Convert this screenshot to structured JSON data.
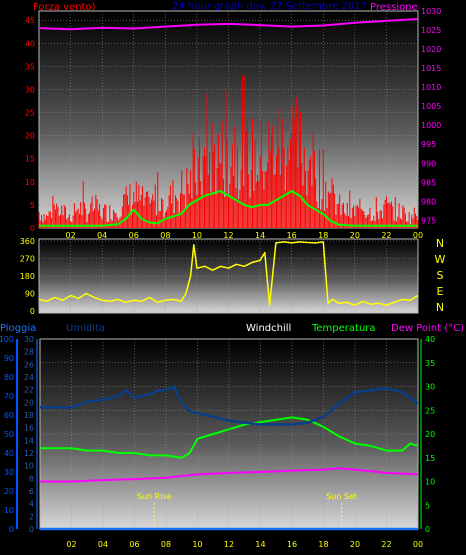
{
  "header": {
    "left_label": "Forza vento)",
    "center_label": "24 hour graph day.  27 Settembre 2017",
    "right_label": "Pressione"
  },
  "bottom_header": {
    "pioggia": "Pioggia",
    "umidita": "Umidita",
    "windchill": "Windchill",
    "temperatura": "Temperatura",
    "dewpoint": "Dew Point (°C)"
  },
  "compass": [
    "N",
    "W",
    "S",
    "E",
    "N"
  ],
  "annotations": {
    "sunrise": "Sun Rise",
    "sunset": "Sun Set"
  },
  "colors": {
    "wind": "#ff0000",
    "gust": "#00ff00",
    "pressure": "#ff00ff",
    "direction": "#ffff00",
    "humidity": "#0a3e86",
    "temperature": "#00ff00",
    "dewpoint": "#ff00ff",
    "rain": "#1e6fff",
    "axis_left": "#ff0000",
    "axis_right": "#ff00ff",
    "axis_dir": "#ffff00",
    "axis_rain": "#0055ff",
    "axis_hum": "#0a3e86",
    "axis_temp": "#00ff00",
    "hours": "#ffff00"
  },
  "chart_data": [
    {
      "type": "line",
      "name": "wind-pressure",
      "x_ticks": [
        "02",
        "04",
        "06",
        "08",
        "10",
        "12",
        "14",
        "16",
        "18",
        "20",
        "22",
        "00"
      ],
      "y_left": {
        "range": [
          0,
          47
        ],
        "ticks": [
          0,
          5,
          10,
          15,
          20,
          25,
          30,
          35,
          40,
          45
        ]
      },
      "y_right": {
        "range": [
          973,
          1030
        ],
        "ticks": [
          975,
          980,
          985,
          990,
          995,
          1000,
          1005,
          1010,
          1015,
          1020,
          1025,
          1030
        ]
      },
      "series": [
        {
          "key": "wind_base",
          "x": [
            0,
            0.5,
            1,
            1.5,
            2,
            2.5,
            3,
            3.5,
            4,
            4.5,
            5,
            5.5,
            6,
            6.5,
            7,
            7.5,
            8,
            8.5,
            9,
            9.5,
            10,
            10.5,
            11,
            11.5,
            12,
            12.5,
            13,
            13.5,
            14,
            14.5,
            15,
            15.5,
            16,
            16.5,
            17,
            17.5,
            18,
            18.5,
            19,
            19.5,
            20,
            20.5,
            21,
            21.5,
            22,
            22.5,
            23,
            23.5,
            24
          ],
          "y": [
            3,
            2,
            4,
            3,
            2,
            4,
            3,
            4,
            3,
            3,
            4,
            5,
            6,
            5,
            4,
            6,
            5,
            6,
            7,
            8,
            10,
            12,
            14,
            13,
            15,
            16,
            14,
            13,
            13,
            14,
            15,
            16,
            17,
            15,
            13,
            11,
            9,
            6,
            4,
            3,
            3,
            4,
            3,
            3,
            4,
            3,
            3,
            2,
            3
          ]
        },
        {
          "key": "gust",
          "x": [
            0,
            1,
            2,
            3,
            4,
            5,
            5.5,
            6,
            6.5,
            7,
            7.5,
            8,
            8.5,
            9,
            9.5,
            10,
            10.5,
            11,
            11.5,
            12,
            12.5,
            13,
            13.5,
            14,
            14.5,
            15,
            15.5,
            16,
            16.5,
            17,
            17.5,
            18,
            18.5,
            19,
            20,
            21,
            22,
            23,
            24
          ],
          "y": [
            0.5,
            0.5,
            0.5,
            0.5,
            0.5,
            0.8,
            2,
            4,
            2,
            1.2,
            1,
            2,
            2.5,
            3,
            5,
            6,
            7,
            7.5,
            8,
            7,
            6,
            5,
            4.5,
            5,
            5,
            6,
            7,
            8,
            7,
            5,
            4,
            3,
            1.5,
            0.7,
            0.5,
            0.5,
            0.5,
            0.5,
            0.5
          ]
        },
        {
          "key": "pressure",
          "x": [
            0,
            2,
            4,
            6,
            8,
            10,
            12,
            14,
            16,
            18,
            20,
            22,
            24
          ],
          "y": [
            1025.5,
            1025.2,
            1025.6,
            1025.4,
            1025.9,
            1026.4,
            1026.6,
            1026.3,
            1025.9,
            1026.2,
            1026.9,
            1027.4,
            1027.9
          ]
        }
      ]
    },
    {
      "type": "line",
      "name": "wind-direction",
      "x_ticks": [],
      "y_left": {
        "range": [
          -10,
          370
        ],
        "ticks": [
          0,
          90,
          180,
          270,
          360
        ]
      },
      "series": [
        {
          "key": "direction",
          "x": [
            0,
            0.5,
            1,
            1.5,
            2,
            2.5,
            3,
            3.5,
            4,
            4.5,
            5,
            5.5,
            6,
            6.5,
            7,
            7.5,
            8,
            8.5,
            9,
            9.3,
            9.6,
            9.8,
            10,
            10.5,
            11,
            11.5,
            12,
            12.5,
            13,
            13.5,
            14,
            14.3,
            14.6,
            15,
            15.5,
            16,
            16.5,
            17,
            17.5,
            18,
            18.3,
            18.6,
            19,
            19.5,
            20,
            20.5,
            21,
            21.5,
            22,
            22.5,
            23,
            23.5,
            24
          ],
          "y": [
            60,
            50,
            70,
            55,
            80,
            65,
            90,
            70,
            55,
            50,
            60,
            45,
            55,
            50,
            70,
            45,
            55,
            60,
            50,
            90,
            180,
            340,
            220,
            230,
            210,
            230,
            220,
            240,
            230,
            250,
            260,
            300,
            30,
            350,
            355,
            350,
            355,
            352,
            350,
            355,
            40,
            60,
            40,
            45,
            30,
            50,
            35,
            40,
            30,
            45,
            60,
            55,
            80
          ]
        }
      ]
    },
    {
      "type": "line",
      "name": "temperature-humidity",
      "x_ticks": [
        "02",
        "04",
        "06",
        "08",
        "10",
        "12",
        "14",
        "16",
        "18",
        "20",
        "22",
        "00"
      ],
      "y_rain": {
        "range": [
          0,
          100
        ],
        "ticks": [
          0,
          10,
          20,
          30,
          40,
          50,
          60,
          70,
          80,
          90,
          100
        ]
      },
      "y_hum": {
        "range": [
          0,
          30
        ],
        "ticks": [
          0,
          2,
          4,
          6,
          8,
          10,
          12,
          14,
          16,
          18,
          20,
          22,
          24,
          26,
          28,
          30
        ]
      },
      "y_temp": {
        "range": [
          0,
          40
        ],
        "ticks": [
          0,
          5,
          10,
          15,
          20,
          25,
          30,
          35,
          40
        ]
      },
      "series": [
        {
          "key": "humidity",
          "x": [
            0,
            1,
            2,
            3,
            4,
            5,
            5.5,
            6,
            6.5,
            7,
            7.5,
            8,
            8.5,
            9,
            9.5,
            10,
            11,
            12,
            13,
            14,
            15,
            16,
            17,
            18,
            19,
            19.5,
            20,
            21,
            22,
            23,
            23.5,
            24
          ],
          "y": [
            64,
            64,
            64,
            67,
            68,
            70,
            73,
            69,
            70,
            71,
            73,
            73,
            75,
            66,
            62,
            61,
            59,
            57,
            56,
            55,
            55,
            55,
            56,
            59,
            66,
            69,
            72,
            73,
            74,
            72,
            69,
            66
          ]
        },
        {
          "key": "temperature",
          "x": [
            0,
            1,
            2,
            3,
            4,
            5,
            6,
            7,
            8,
            9,
            9.5,
            10,
            11,
            12,
            13,
            14,
            15,
            16,
            17,
            18,
            19,
            20,
            21,
            22,
            23,
            23.5,
            24
          ],
          "y": [
            17,
            17,
            17,
            16.5,
            16.5,
            16,
            16,
            15.5,
            15.5,
            15,
            16,
            19,
            20,
            21,
            22,
            22.5,
            23,
            23.5,
            23,
            21.5,
            19.5,
            18,
            17.5,
            16.5,
            16.5,
            18,
            17.5
          ]
        },
        {
          "key": "dewpoint",
          "x": [
            0,
            2,
            4,
            6,
            8,
            10,
            12,
            14,
            16,
            18,
            19,
            20,
            22,
            24
          ],
          "y": [
            10,
            10,
            10.3,
            10.5,
            10.8,
            11.5,
            11.8,
            12,
            12.3,
            12.5,
            12.8,
            12.5,
            11.8,
            11.5
          ]
        },
        {
          "key": "rain",
          "x": [
            0,
            24
          ],
          "y": [
            0,
            0
          ]
        }
      ],
      "sunrise_hour": 7.25,
      "sunset_hour": 19.15
    }
  ]
}
